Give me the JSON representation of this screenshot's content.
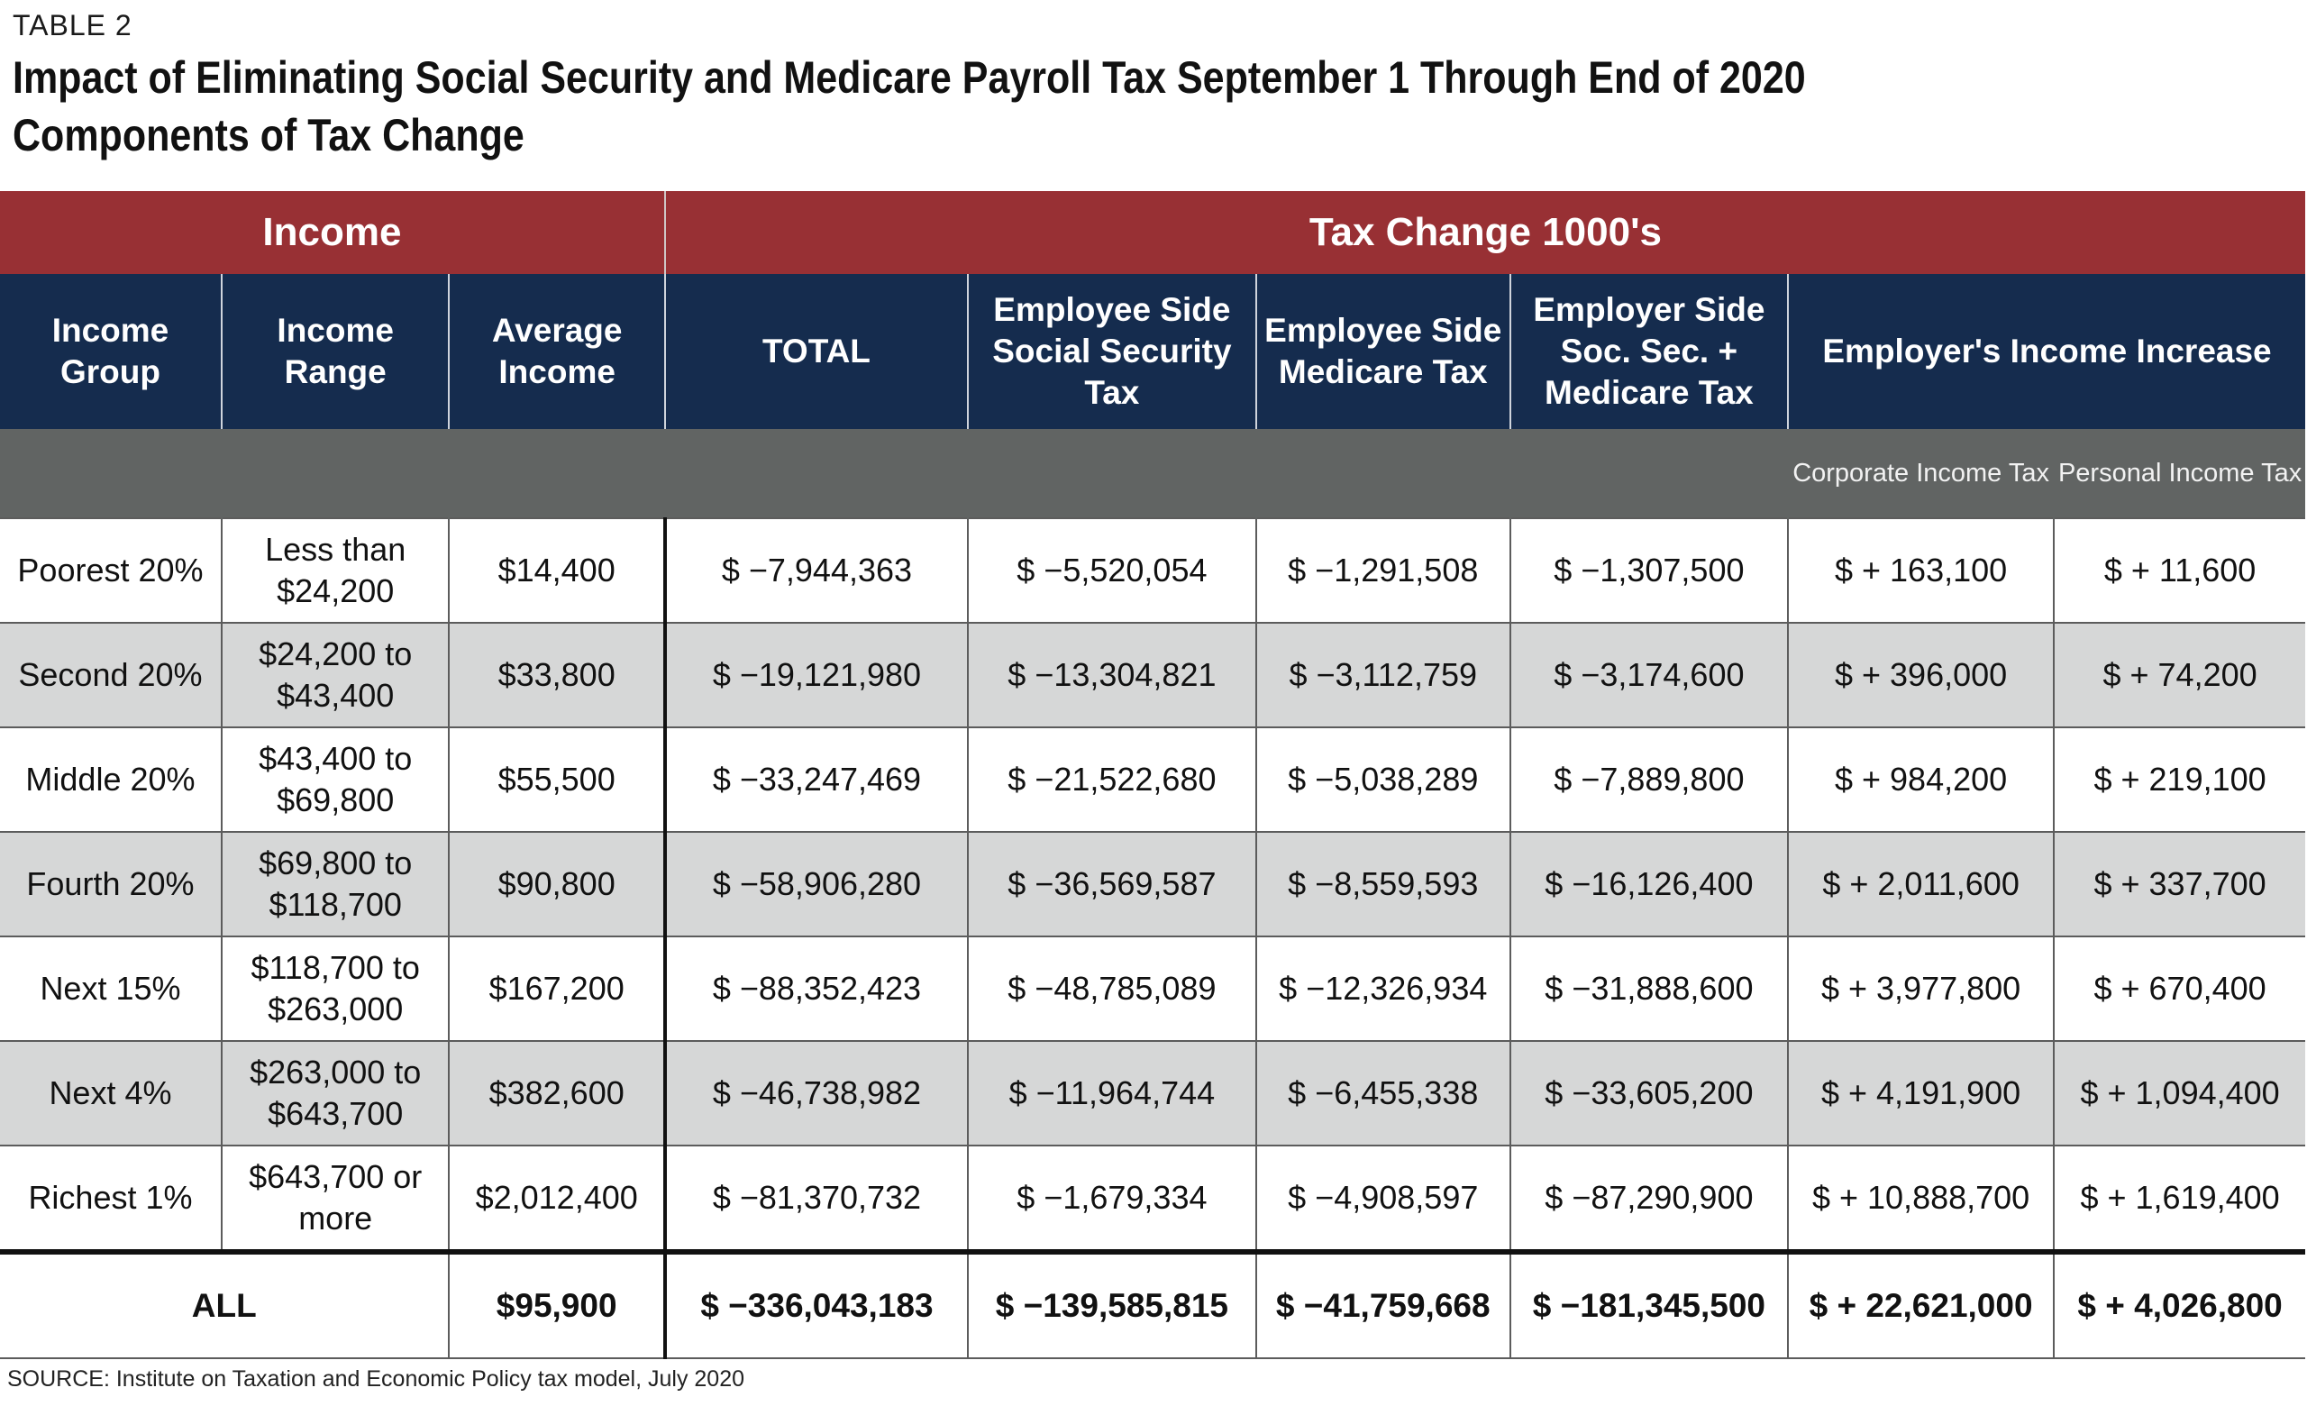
{
  "kicker": "TABLE 2",
  "title_line1": "Impact of Eliminating Social Security and Medicare Payroll Tax September 1 Through End of 2020",
  "title_line2": "Components of Tax Change",
  "band": {
    "income": "Income",
    "tax_change": "Tax Change 1000's"
  },
  "headers": {
    "income_group": "Income Group",
    "income_range": "Income Range",
    "average_income": "Average Income",
    "total": "TOTAL",
    "employee_ss": "Employee Side Social Security Tax",
    "employee_medicare": "Employee Side Medicare Tax",
    "employer_ss_medicare": "Employer Side Soc. Sec. + Medicare Tax",
    "employer_income_increase": "Employer's Income Increase",
    "corporate_income_tax": "Corporate Income Tax",
    "personal_income_tax": "Personal Income Tax"
  },
  "rows": [
    {
      "group": "Poorest 20%",
      "range": "Less than $24,200",
      "avg": "$14,400",
      "total": "$ −7,944,363",
      "emp_ss": "$ −5,520,054",
      "emp_med": "$ −1,291,508",
      "empr": "$ −1,307,500",
      "corp": "$ + 163,100",
      "pers": "$ + 11,600"
    },
    {
      "group": "Second 20%",
      "range": "$24,200 to $43,400",
      "avg": "$33,800",
      "total": "$ −19,121,980",
      "emp_ss": "$ −13,304,821",
      "emp_med": "$ −3,112,759",
      "empr": "$ −3,174,600",
      "corp": "$ + 396,000",
      "pers": "$ + 74,200"
    },
    {
      "group": "Middle 20%",
      "range": "$43,400 to $69,800",
      "avg": "$55,500",
      "total": "$ −33,247,469",
      "emp_ss": "$ −21,522,680",
      "emp_med": "$ −5,038,289",
      "empr": "$ −7,889,800",
      "corp": "$ + 984,200",
      "pers": "$ + 219,100"
    },
    {
      "group": "Fourth 20%",
      "range": "$69,800 to $118,700",
      "avg": "$90,800",
      "total": "$ −58,906,280",
      "emp_ss": "$ −36,569,587",
      "emp_med": "$ −8,559,593",
      "empr": "$ −16,126,400",
      "corp": "$ + 2,011,600",
      "pers": "$ + 337,700"
    },
    {
      "group": "Next 15%",
      "range": "$118,700 to $263,000",
      "avg": "$167,200",
      "total": "$ −88,352,423",
      "emp_ss": "$ −48,785,089",
      "emp_med": "$ −12,326,934",
      "empr": "$ −31,888,600",
      "corp": "$ + 3,977,800",
      "pers": "$ + 670,400"
    },
    {
      "group": "Next 4%",
      "range": "$263,000 to $643,700",
      "avg": "$382,600",
      "total": "$ −46,738,982",
      "emp_ss": "$ −11,964,744",
      "emp_med": "$ −6,455,338",
      "empr": "$ −33,605,200",
      "corp": "$ + 4,191,900",
      "pers": "$ + 1,094,400"
    },
    {
      "group": "Richest 1%",
      "range": "$643,700 or more",
      "avg": "$2,012,400",
      "total": "$ −81,370,732",
      "emp_ss": "$ −1,679,334",
      "emp_med": "$ −4,908,597",
      "empr": "$ −87,290,900",
      "corp": "$ + 10,888,700",
      "pers": "$ + 1,619,400"
    }
  ],
  "all_row": {
    "label": "ALL",
    "avg": "$95,900",
    "total": "$ −336,043,183",
    "emp_ss": "$ −139,585,815",
    "emp_med": "$ −41,759,668",
    "empr": "$ −181,345,500",
    "corp": "$ + 22,621,000",
    "pers": "$ + 4,026,800"
  },
  "source": "SOURCE: Institute on Taxation and Economic Policy tax model, July 2020"
}
